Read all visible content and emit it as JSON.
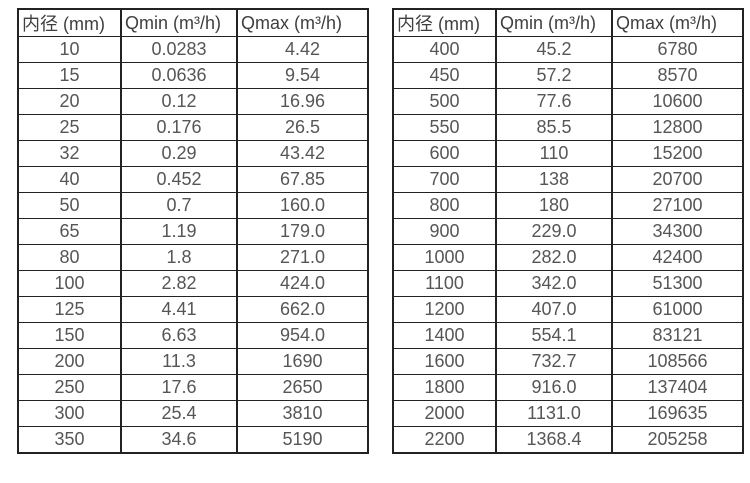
{
  "colors": {
    "border": "#222222",
    "header_text": "#3f3f3f",
    "cell_text": "#565656",
    "background": "#ffffff"
  },
  "tables": [
    {
      "name": "flow-table-small-diameters",
      "headers": [
        "内径 (mm)",
        "Qmin (m³/h)",
        "Qmax (m³/h)"
      ],
      "rows": [
        [
          "10",
          "0.0283",
          "4.42"
        ],
        [
          "15",
          "0.0636",
          "9.54"
        ],
        [
          "20",
          "0.12",
          "16.96"
        ],
        [
          "25",
          "0.176",
          "26.5"
        ],
        [
          "32",
          "0.29",
          "43.42"
        ],
        [
          "40",
          "0.452",
          "67.85"
        ],
        [
          "50",
          "0.7",
          "160.0"
        ],
        [
          "65",
          "1.19",
          "179.0"
        ],
        [
          "80",
          "1.8",
          "271.0"
        ],
        [
          "100",
          "2.82",
          "424.0"
        ],
        [
          "125",
          "4.41",
          "662.0"
        ],
        [
          "150",
          "6.63",
          "954.0"
        ],
        [
          "200",
          "11.3",
          "1690"
        ],
        [
          "250",
          "17.6",
          "2650"
        ],
        [
          "300",
          "25.4",
          "3810"
        ],
        [
          "350",
          "34.6",
          "5190"
        ]
      ]
    },
    {
      "name": "flow-table-large-diameters",
      "headers": [
        "内径 (mm)",
        "Qmin (m³/h)",
        "Qmax (m³/h)"
      ],
      "rows": [
        [
          "400",
          "45.2",
          "6780"
        ],
        [
          "450",
          "57.2",
          "8570"
        ],
        [
          "500",
          "77.6",
          "10600"
        ],
        [
          "550",
          "85.5",
          "12800"
        ],
        [
          "600",
          "110",
          "15200"
        ],
        [
          "700",
          "138",
          "20700"
        ],
        [
          "800",
          "180",
          "27100"
        ],
        [
          "900",
          "229.0",
          "34300"
        ],
        [
          "1000",
          "282.0",
          "42400"
        ],
        [
          "1100",
          "342.0",
          "51300"
        ],
        [
          "1200",
          "407.0",
          "61000"
        ],
        [
          "1400",
          "554.1",
          "83121"
        ],
        [
          "1600",
          "732.7",
          "108566"
        ],
        [
          "1800",
          "916.0",
          "137404"
        ],
        [
          "2000",
          "1131.0",
          "169635"
        ],
        [
          "2200",
          "1368.4",
          "205258"
        ]
      ]
    }
  ]
}
